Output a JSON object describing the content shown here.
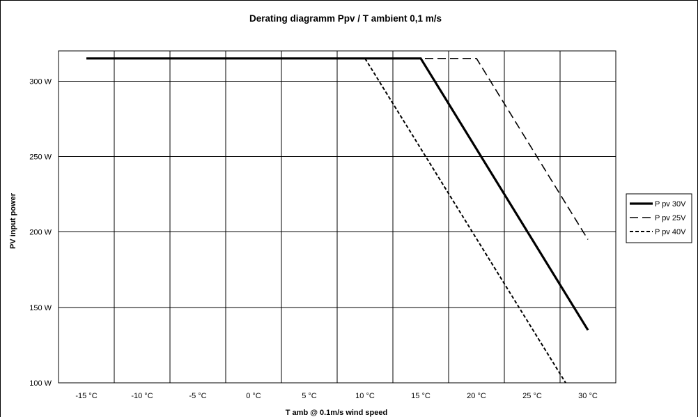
{
  "chart_data": {
    "type": "line",
    "title": "Derating diagramm Ppv / T ambient 0,1 m/s",
    "xlabel": "T amb  @  0.1m/s wind speed",
    "ylabel": "PV input power",
    "x_ticks": [
      -15,
      -10,
      -5,
      0,
      5,
      10,
      15,
      20,
      25,
      30
    ],
    "x_tick_labels": [
      "-15 °C",
      "-10 °C",
      "-5 °C",
      "0 °C",
      "5 °C",
      "10 °C",
      "15 °C",
      "20 °C",
      "25 °C",
      "30 °C"
    ],
    "y_ticks": [
      100,
      150,
      200,
      250,
      300
    ],
    "y_tick_labels": [
      "100 W",
      "150 W",
      "200 W",
      "250 W",
      "300 W"
    ],
    "xlim": [
      -17.5,
      32.5
    ],
    "ylim": [
      100,
      320
    ],
    "grid": true,
    "legend_position": "right",
    "series": [
      {
        "name": "P pv 30V",
        "dash": "solid",
        "points": [
          [
            -15,
            315
          ],
          [
            15,
            315
          ],
          [
            30,
            135
          ]
        ]
      },
      {
        "name": "P pv 25V",
        "dash": "dashed",
        "points": [
          [
            -15,
            315
          ],
          [
            20,
            315
          ],
          [
            30,
            195
          ]
        ]
      },
      {
        "name": "P pv 40V",
        "dash": "dotted",
        "points": [
          [
            -15,
            315
          ],
          [
            10,
            315
          ],
          [
            28,
            100
          ]
        ]
      }
    ]
  }
}
